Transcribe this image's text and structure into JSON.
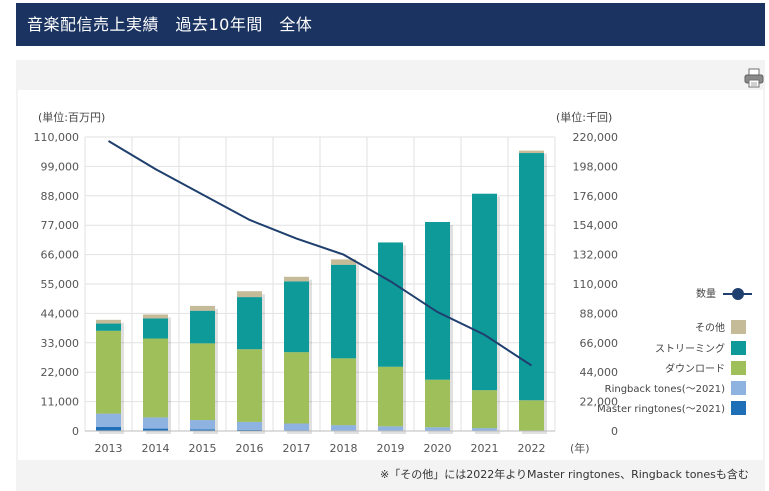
{
  "header": {
    "title": "音楽配信売上実績　過去10年間　全体"
  },
  "footnote": "※「その他」には2022年よりMaster ringtones、Ringback tonesも含む",
  "chart_data": {
    "type": "bar",
    "stacked": true,
    "categories": [
      "2013",
      "2014",
      "2015",
      "2016",
      "2017",
      "2018",
      "2019",
      "2020",
      "2021",
      "2022"
    ],
    "left_axis": {
      "label": "(単位:百万円)",
      "ylim": [
        0,
        110000
      ],
      "ticks": [
        "0",
        "11,000",
        "22,000",
        "33,000",
        "44,000",
        "55,000",
        "66,000",
        "77,000",
        "88,000",
        "99,000",
        "110,000"
      ]
    },
    "right_axis": {
      "label": "(単位:千回)",
      "ylim": [
        0,
        220000
      ],
      "ticks": [
        "0",
        "22,000",
        "44,000",
        "66,000",
        "88,000",
        "110,000",
        "132,000",
        "154,000",
        "176,000",
        "198,000",
        "220,000"
      ]
    },
    "x_unit": "(年)",
    "series": [
      {
        "name": "Master ringtones(～2021)",
        "color": "#1f6fb8",
        "values": [
          1500,
          900,
          600,
          400,
          300,
          200,
          150,
          100,
          80,
          0
        ]
      },
      {
        "name": "Ringback tones(～2021)",
        "color": "#8fb3e0",
        "values": [
          5000,
          4200,
          3500,
          3000,
          2500,
          2000,
          1600,
          1300,
          1000,
          0
        ]
      },
      {
        "name": "ダウンロード",
        "color": "#9fbf5a",
        "values": [
          31000,
          29500,
          28700,
          27200,
          26700,
          25000,
          22300,
          17800,
          14200,
          11500
        ]
      },
      {
        "name": "ストリーミング",
        "color": "#0e9a99",
        "values": [
          2700,
          7500,
          12200,
          19500,
          26500,
          35000,
          46500,
          59000,
          73500,
          92500
        ]
      },
      {
        "name": "その他",
        "color": "#c5bb98",
        "values": [
          1400,
          1500,
          1800,
          2200,
          1700,
          2000,
          0,
          0,
          0,
          900
        ]
      }
    ],
    "line": {
      "name": "数量",
      "color": "#1f3f6e",
      "axis": "right",
      "values": [
        217000,
        196000,
        177000,
        158000,
        144000,
        132000,
        112000,
        89000,
        72000,
        49000
      ]
    },
    "legend_position": "right",
    "grid": true
  }
}
